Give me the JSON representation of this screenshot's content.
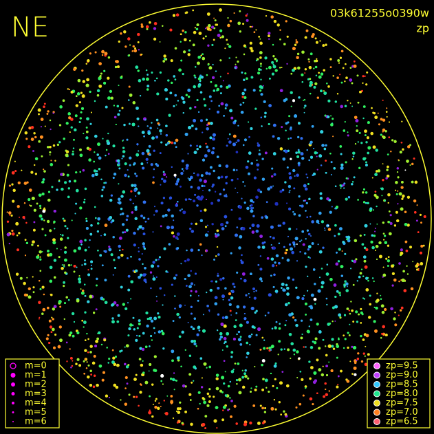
{
  "corner_label": "NE",
  "frame_id": "03k61255o0390w",
  "mode_label": "zp",
  "magnitude_legend": {
    "color": "#ff00ff",
    "items": [
      "m=0",
      "m=1",
      "m=2",
      "m=3",
      "m=4",
      "m=5",
      "m=6"
    ]
  },
  "zp_legend": {
    "items": [
      {
        "label": "zp=9.5",
        "color": "#ff66ff"
      },
      {
        "label": "zp=9.0",
        "color": "#c040ff"
      },
      {
        "label": "zp=8.5",
        "color": "#30c8ff"
      },
      {
        "label": "zp=8.0",
        "color": "#20e890"
      },
      {
        "label": "zp=7.5",
        "color": "#f0e020"
      },
      {
        "label": "zp=7.0",
        "color": "#ff8020"
      },
      {
        "label": "zp=6.5",
        "color": "#ff6070"
      }
    ]
  }
}
